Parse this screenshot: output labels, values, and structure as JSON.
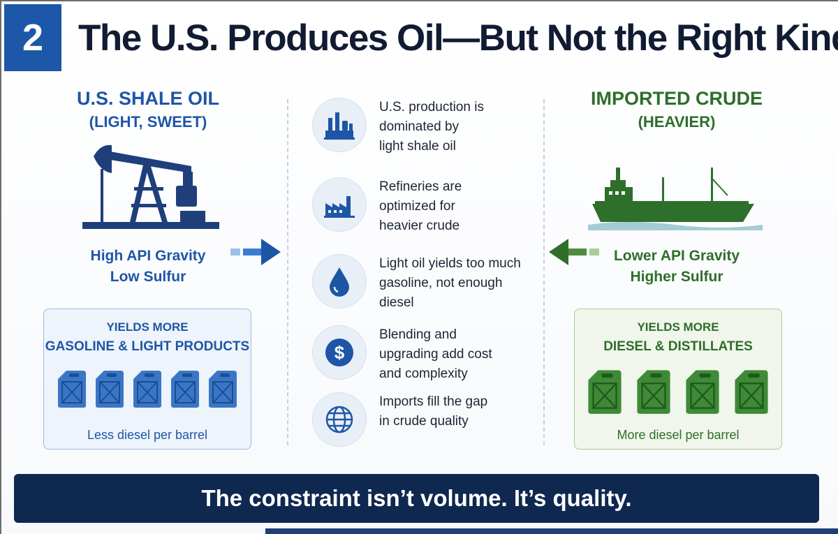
{
  "header": {
    "number": "2",
    "title": "The U.S. Produces Oil—But Not the Right Kind"
  },
  "left": {
    "heading_line1": "U.S. SHALE OIL",
    "heading_line2": "(LIGHT, SWEET)",
    "image_icon": "oil-pump-jack-icon",
    "spec_line1": "High API Gravity",
    "spec_line2": "Low Sulfur",
    "box": {
      "line1": "YIELDS MORE",
      "line2": "GASOLINE & LIGHT PRODUCTS",
      "can_count": 5,
      "footer": "Less diesel per barrel"
    },
    "color": "#1e56a6"
  },
  "right": {
    "heading_line1": "IMPORTED CRUDE",
    "heading_line2": "(HEAVIER)",
    "image_icon": "tanker-ship-icon",
    "spec_line1": "Lower API Gravity",
    "spec_line2": "Higher Sulfur",
    "box": {
      "line1": "YIELDS MORE",
      "line2": "DIESEL & DISTILLATES",
      "can_count": 4,
      "footer": "More diesel per barrel"
    },
    "color": "#2e6e2a"
  },
  "middle": {
    "items": [
      {
        "icon": "refinery-icon",
        "text": "U.S. production is\ndominated by\nlight shale oil"
      },
      {
        "icon": "factory-icon",
        "text": "Refineries are\noptimized for\nheavier crude"
      },
      {
        "icon": "oil-drop-icon",
        "text": "Light oil yields too much\ngasoline, not enough\ndiesel"
      },
      {
        "icon": "dollar-icon",
        "text": "Blending and\nupgrading add cost\nand complexity"
      },
      {
        "icon": "globe-icon",
        "text": "Imports fill the gap\nin crude quality"
      }
    ]
  },
  "banner": {
    "text": "The constraint isn’t volume. It’s quality."
  }
}
